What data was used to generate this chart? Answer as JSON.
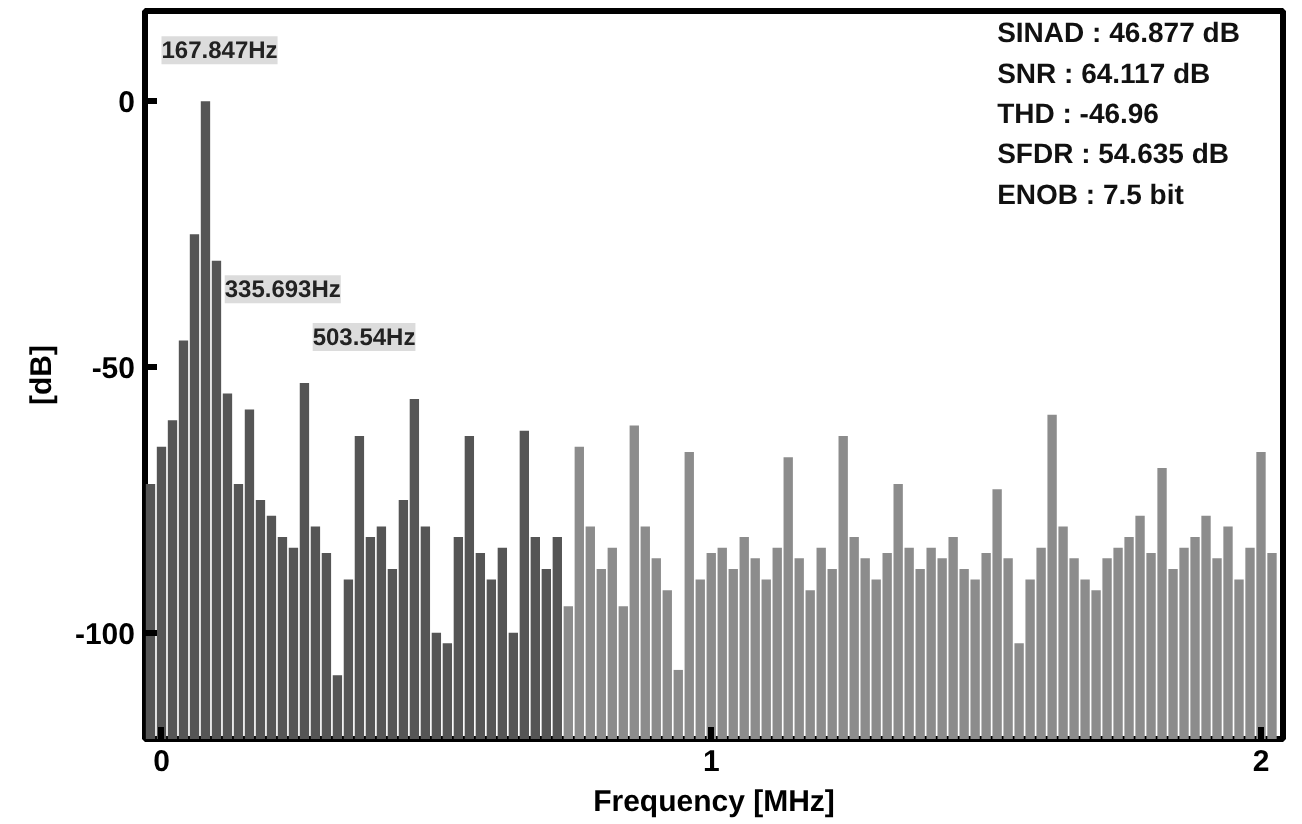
{
  "chart_data": {
    "type": "bar",
    "xlabel": "Frequency [MHz]",
    "ylabel": "[dB]",
    "xlim": [
      -0.03,
      2.04
    ],
    "ylim": [
      -120,
      17
    ],
    "xticks": [
      0,
      1,
      2
    ],
    "yticks": [
      0,
      -50,
      -100
    ],
    "series": [
      {
        "color": "#555555",
        "x": [
          -0.02,
          0.0,
          0.02,
          0.04,
          0.06,
          0.08,
          0.1,
          0.12,
          0.14,
          0.16,
          0.18,
          0.2,
          0.22,
          0.24,
          0.26,
          0.28,
          0.3,
          0.32,
          0.34,
          0.36,
          0.38,
          0.4,
          0.42,
          0.44,
          0.46,
          0.48,
          0.5,
          0.52,
          0.54,
          0.56,
          0.58,
          0.6,
          0.62,
          0.64,
          0.66,
          0.68,
          0.7,
          0.72
        ],
        "base": [
          -120,
          -120,
          -120,
          -120,
          -120,
          -120,
          -120,
          -120,
          -120,
          -120,
          -120,
          -120,
          -120,
          -120,
          -120,
          -120,
          -120,
          -120,
          -120,
          -120,
          -120,
          -120,
          -120,
          -120,
          -120,
          -120,
          -120,
          -120,
          -120,
          -120,
          -120,
          -120,
          -120,
          -120,
          -120,
          -120,
          -120,
          -120
        ],
        "values": [
          48,
          55,
          60,
          75,
          95,
          120,
          90,
          65,
          48,
          62,
          45,
          42,
          38,
          36,
          67,
          40,
          35,
          12,
          30,
          57,
          38,
          40,
          32,
          45,
          64,
          40,
          20,
          18,
          38,
          57,
          35,
          30,
          36,
          20,
          58,
          38,
          32,
          38
        ]
      },
      {
        "color": "#8c8c8c",
        "x": [
          0.74,
          0.76,
          0.78,
          0.8,
          0.82,
          0.84,
          0.86,
          0.88,
          0.9,
          0.92,
          0.94,
          0.96,
          0.98,
          1.0,
          1.02,
          1.04,
          1.06,
          1.08,
          1.1,
          1.12,
          1.14,
          1.16,
          1.18,
          1.2,
          1.22,
          1.24,
          1.26,
          1.28,
          1.3,
          1.32,
          1.34,
          1.36,
          1.38,
          1.4,
          1.42,
          1.44,
          1.46,
          1.48,
          1.5,
          1.52,
          1.54,
          1.56,
          1.58,
          1.6,
          1.62,
          1.64,
          1.66,
          1.68,
          1.7,
          1.72,
          1.74,
          1.76,
          1.78,
          1.8,
          1.82,
          1.84,
          1.86,
          1.88,
          1.9,
          1.92,
          1.94,
          1.96,
          1.98,
          2.0,
          2.02
        ],
        "base": [
          -120,
          -120,
          -120,
          -120,
          -120,
          -120,
          -120,
          -120,
          -120,
          -120,
          -120,
          -120,
          -120,
          -120,
          -120,
          -120,
          -120,
          -120,
          -120,
          -120,
          -120,
          -120,
          -120,
          -120,
          -120,
          -120,
          -120,
          -120,
          -120,
          -120,
          -120,
          -120,
          -120,
          -120,
          -120,
          -120,
          -120,
          -120,
          -120,
          -120,
          -120,
          -120,
          -120,
          -120,
          -120,
          -120,
          -120,
          -120,
          -120,
          -120,
          -120,
          -120,
          -120,
          -120,
          -120,
          -120,
          -120,
          -120,
          -120,
          -120,
          -120,
          -120,
          -120,
          -120,
          -120
        ],
        "values": [
          25,
          55,
          40,
          32,
          36,
          25,
          59,
          40,
          34,
          28,
          13,
          54,
          30,
          35,
          36,
          32,
          38,
          34,
          30,
          36,
          53,
          34,
          28,
          36,
          32,
          57,
          38,
          34,
          30,
          35,
          48,
          36,
          32,
          36,
          34,
          38,
          32,
          30,
          35,
          47,
          34,
          18,
          30,
          36,
          61,
          40,
          34,
          30,
          28,
          34,
          36,
          38,
          42,
          35,
          51,
          32,
          36,
          38,
          42,
          34,
          40,
          30,
          36,
          54,
          35
        ]
      }
    ],
    "annotations": [
      "167.847Hz",
      "335.693Hz",
      "503.54Hz",
      "SINAD : 46.877 dB",
      "SNR : 64.117 dB",
      "THD : -46.96",
      "SFDR : 54.635 dB",
      "ENOB : 7.5 bit"
    ]
  }
}
